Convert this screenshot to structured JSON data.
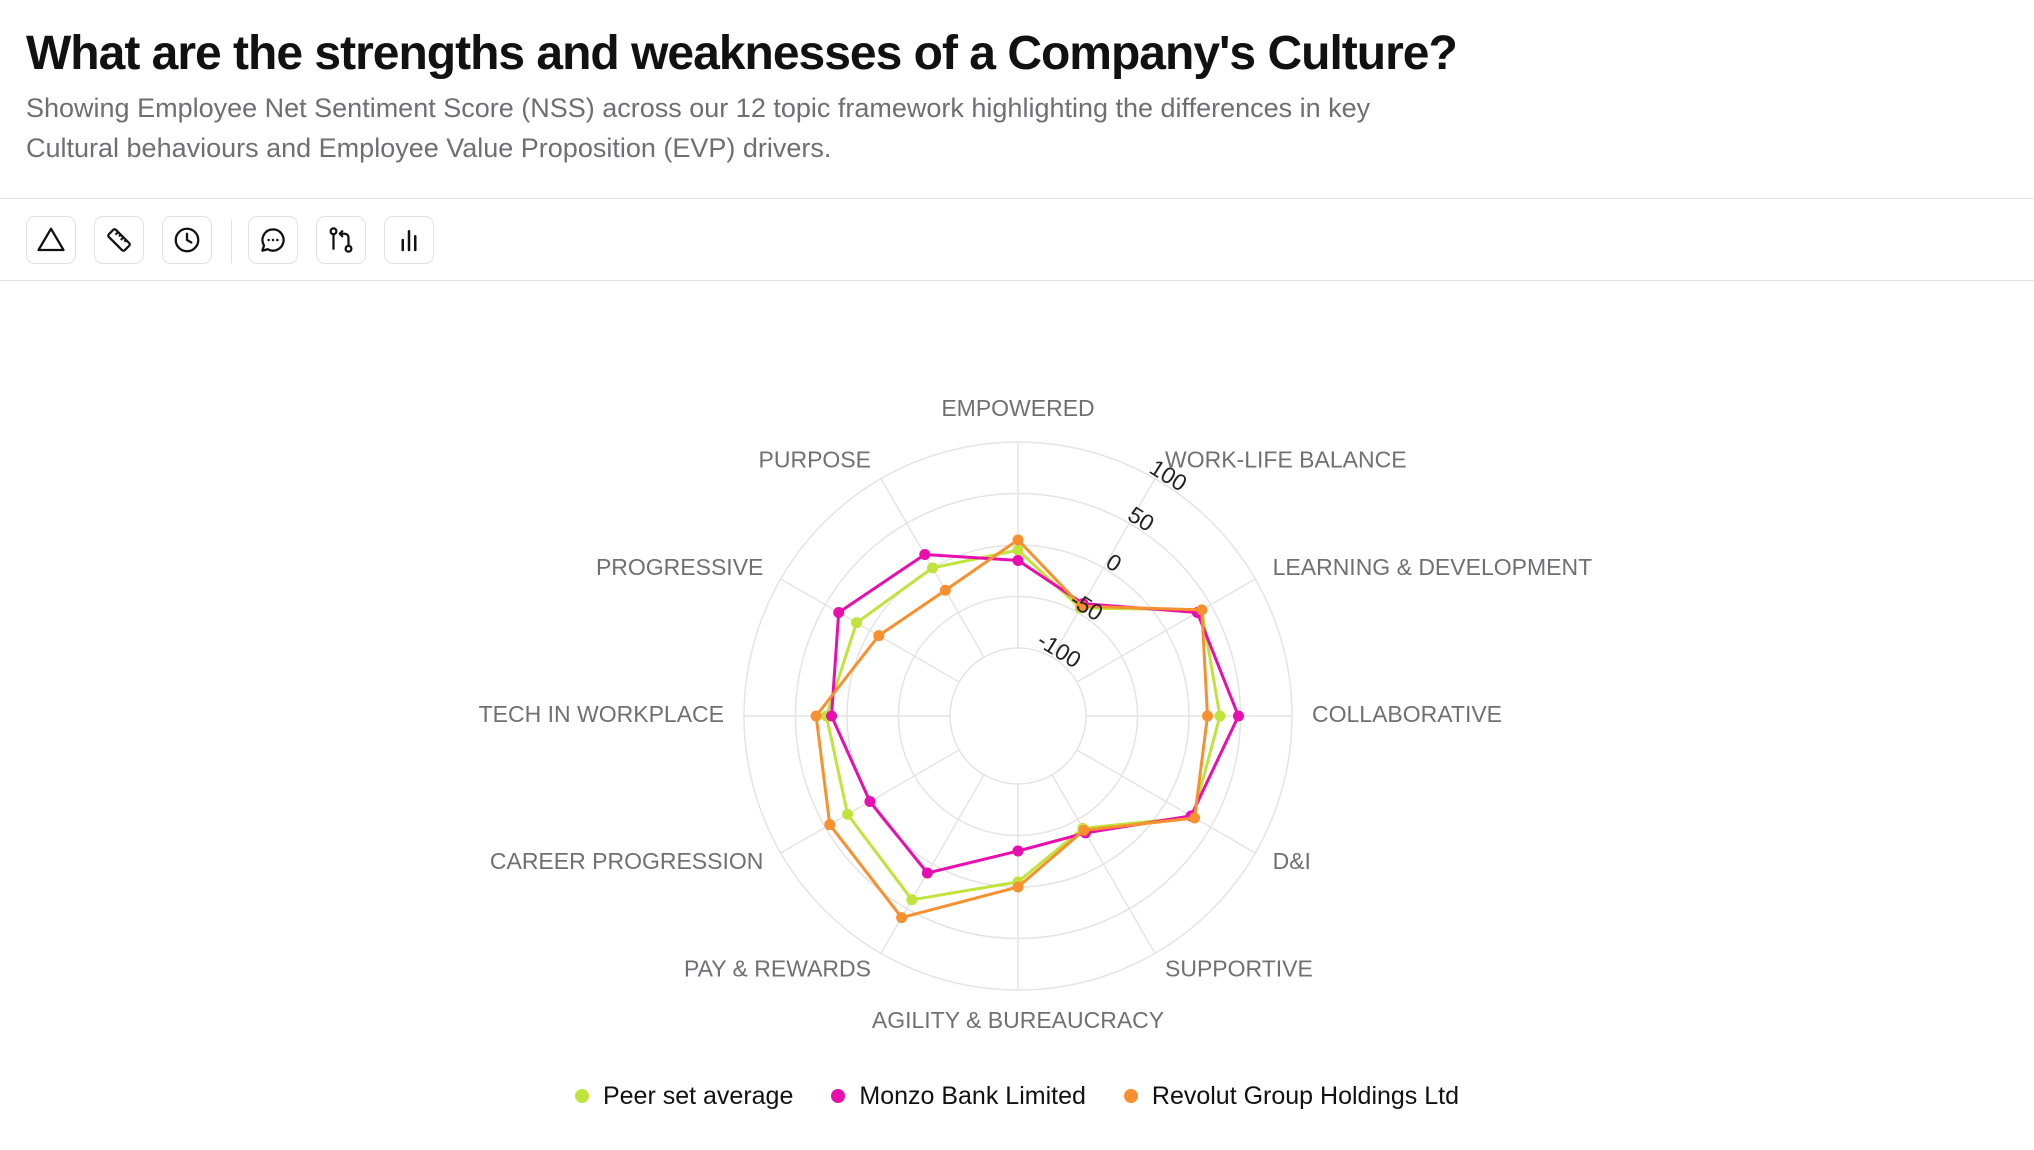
{
  "header": {
    "title": "What are the strengths and weaknesses of a Company's Culture?",
    "subtitle": "Showing Employee Net Sentiment Score (NSS) across our 12 topic framework highlighting the differences in key Cultural behaviours and Employee Value Proposition (EVP) drivers."
  },
  "toolbar": {
    "buttons": [
      {
        "icon": "triangle-icon"
      },
      {
        "icon": "ruler-icon"
      },
      {
        "icon": "clock-icon"
      },
      {
        "icon": "comment-icon"
      },
      {
        "icon": "git-compare-icon"
      },
      {
        "icon": "bar-chart-icon"
      }
    ]
  },
  "chart_data": {
    "type": "radar",
    "categories": [
      "EMPOWERED",
      "WORK-LIFE BALANCE",
      "LEARNING & DEVELOPMENT",
      "COLLABORATIVE",
      "D&I",
      "SUPPORTIVE",
      "AGILITY & BUREAUCRACY",
      "PAY & REWARDS",
      "CAREER PROGRESSION",
      "TECH IN WORKPLACE",
      "PROGRESSIVE",
      "PURPOSE"
    ],
    "radial_ticks": [
      -100,
      -50,
      0,
      50,
      100
    ],
    "rlim": [
      -100,
      100
    ],
    "grid": true,
    "legend_position": "bottom",
    "series": [
      {
        "name": "Peer set average",
        "color": "#c0e43c",
        "values": [
          -5,
          -45,
          40,
          30,
          30,
          -40,
          -5,
          40,
          25,
          20,
          15,
          0
        ]
      },
      {
        "name": "Monzo Bank Limited",
        "color": "#e80fae",
        "values": [
          -15,
          -40,
          35,
          48,
          28,
          -35,
          -35,
          10,
          0,
          15,
          35,
          15
        ]
      },
      {
        "name": "Revolut Group Holdings Ltd",
        "color": "#f7912f",
        "values": [
          5,
          -43,
          40,
          18,
          32,
          -38,
          0,
          60,
          45,
          30,
          -10,
          -25
        ]
      }
    ]
  }
}
